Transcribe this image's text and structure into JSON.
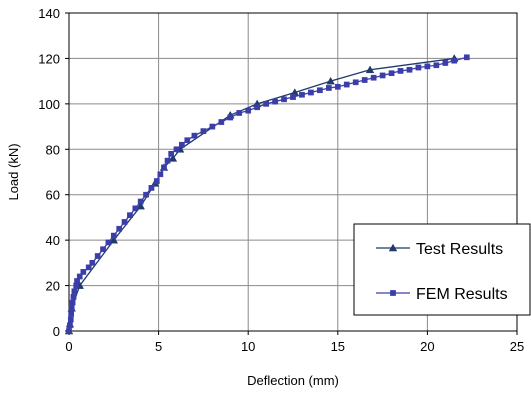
{
  "chart_data": {
    "type": "line",
    "title": "",
    "xlabel": "Deflection (mm)",
    "ylabel": "Load (kN)",
    "xlim": [
      0,
      25
    ],
    "ylim": [
      0,
      140
    ],
    "x_ticks": [
      "0",
      "5",
      "10",
      "15",
      "20",
      "25"
    ],
    "y_ticks": [
      "0",
      "20",
      "40",
      "60",
      "80",
      "100",
      "120",
      "140"
    ],
    "grid": true,
    "legend_position": "bottom-right",
    "series": [
      {
        "name": "Test Results",
        "color": "#1f3a6b",
        "marker": "triangle",
        "points": [
          [
            0,
            0
          ],
          [
            0.05,
            3
          ],
          [
            0.15,
            10
          ],
          [
            0.6,
            20
          ],
          [
            2.5,
            40
          ],
          [
            4.0,
            55
          ],
          [
            4.8,
            65
          ],
          [
            5.3,
            72
          ],
          [
            5.8,
            76
          ],
          [
            6.2,
            80
          ],
          [
            9.0,
            95
          ],
          [
            10.5,
            100
          ],
          [
            12.6,
            105
          ],
          [
            14.6,
            110
          ],
          [
            16.8,
            115
          ],
          [
            21.5,
            120
          ]
        ]
      },
      {
        "name": "FEM Results",
        "color": "#3b3ea8",
        "marker": "square",
        "points": [
          [
            0,
            0
          ],
          [
            0.05,
            2.5
          ],
          [
            0.1,
            5
          ],
          [
            0.12,
            7.5
          ],
          [
            0.15,
            10
          ],
          [
            0.2,
            12.5
          ],
          [
            0.25,
            15
          ],
          [
            0.3,
            17.5
          ],
          [
            0.4,
            20
          ],
          [
            0.45,
            22
          ],
          [
            0.6,
            24
          ],
          [
            0.8,
            26
          ],
          [
            1.1,
            28
          ],
          [
            1.3,
            30
          ],
          [
            1.6,
            33
          ],
          [
            1.9,
            36
          ],
          [
            2.2,
            39
          ],
          [
            2.5,
            42
          ],
          [
            2.8,
            45
          ],
          [
            3.1,
            48
          ],
          [
            3.4,
            51
          ],
          [
            3.7,
            54
          ],
          [
            4.0,
            57
          ],
          [
            4.3,
            60
          ],
          [
            4.6,
            63
          ],
          [
            4.9,
            66
          ],
          [
            5.1,
            69
          ],
          [
            5.3,
            72
          ],
          [
            5.5,
            75
          ],
          [
            5.7,
            78
          ],
          [
            6.0,
            80
          ],
          [
            6.3,
            82
          ],
          [
            6.6,
            84
          ],
          [
            7.0,
            86
          ],
          [
            7.5,
            88
          ],
          [
            8.0,
            90
          ],
          [
            8.5,
            92
          ],
          [
            9.0,
            94
          ],
          [
            9.5,
            96
          ],
          [
            10.0,
            97
          ],
          [
            10.5,
            98.5
          ],
          [
            11.0,
            100
          ],
          [
            11.5,
            101
          ],
          [
            12.0,
            102
          ],
          [
            12.5,
            103
          ],
          [
            13.0,
            104
          ],
          [
            13.5,
            105
          ],
          [
            14.0,
            106
          ],
          [
            14.5,
            107
          ],
          [
            15.0,
            107.5
          ],
          [
            15.5,
            108.5
          ],
          [
            16.0,
            109.5
          ],
          [
            16.5,
            110.5
          ],
          [
            17.0,
            111.5
          ],
          [
            17.5,
            112.5
          ],
          [
            18.0,
            113.5
          ],
          [
            18.5,
            114.5
          ],
          [
            19.0,
            115
          ],
          [
            19.5,
            116
          ],
          [
            20.0,
            116.5
          ],
          [
            20.5,
            117
          ],
          [
            21.0,
            118
          ],
          [
            21.5,
            119
          ],
          [
            22.2,
            120.5
          ]
        ]
      }
    ]
  }
}
